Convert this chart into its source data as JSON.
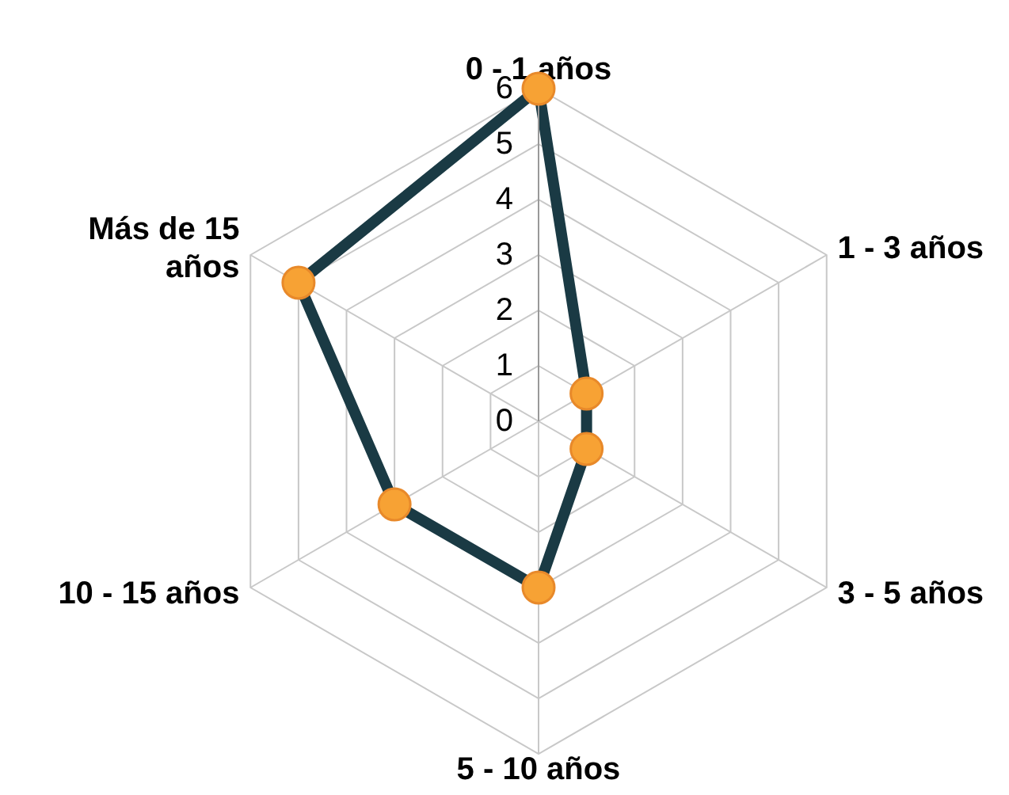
{
  "chart_data": {
    "type": "radar",
    "categories": [
      "0 - 1 años",
      "1 - 3 años",
      "3 - 5 años",
      "5 - 10 años",
      "10 - 15 años",
      "Más de 15 años"
    ],
    "series": [
      {
        "color": "#1a3a44",
        "values": [
          6,
          1,
          1,
          3,
          3,
          5
        ]
      }
    ],
    "ylim": [
      0,
      6
    ],
    "yticks": [
      0,
      1,
      2,
      3,
      4,
      5,
      6
    ],
    "grid": true,
    "marker": "circle",
    "legend": false
  }
}
